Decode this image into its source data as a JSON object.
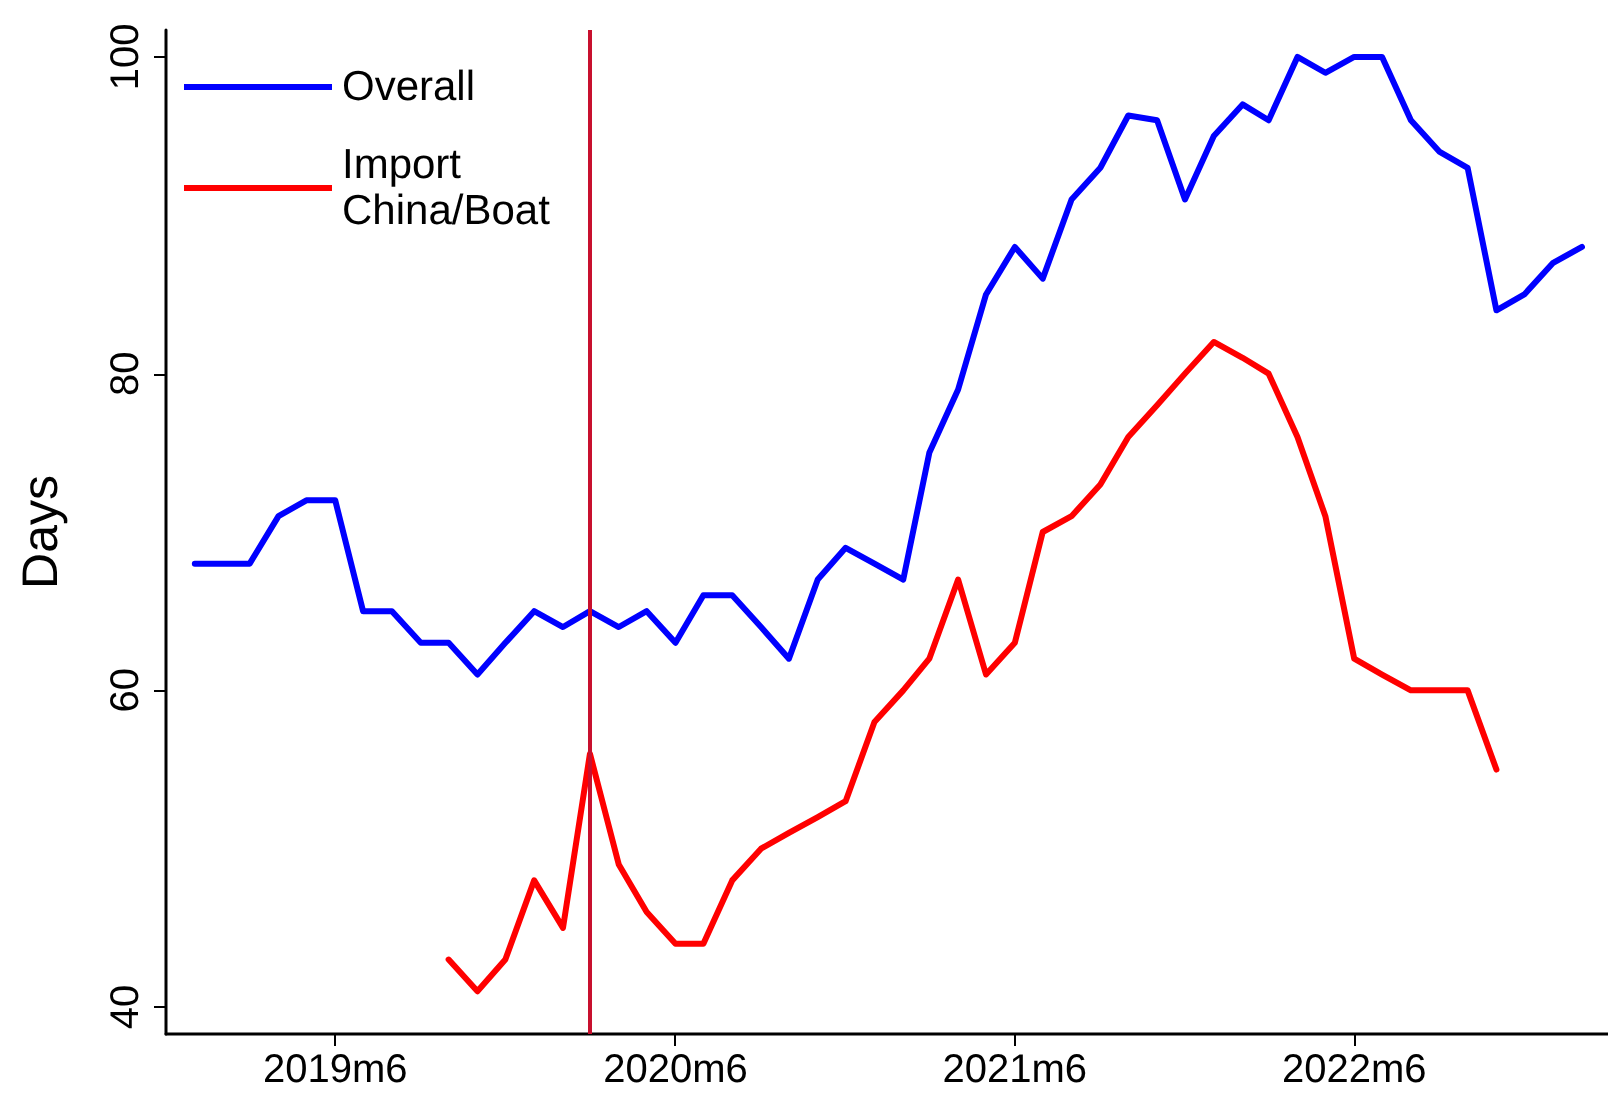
{
  "chart_data": {
    "type": "line",
    "ylabel": "Days",
    "x": [
      "2019-01",
      "2019-02",
      "2019-03",
      "2019-04",
      "2019-05",
      "2019-06",
      "2019-07",
      "2019-08",
      "2019-09",
      "2019-10",
      "2019-11",
      "2019-12",
      "2020-01",
      "2020-02",
      "2020-03",
      "2020-04",
      "2020-05",
      "2020-06",
      "2020-07",
      "2020-08",
      "2020-09",
      "2020-10",
      "2020-11",
      "2020-12",
      "2021-01",
      "2021-02",
      "2021-03",
      "2021-04",
      "2021-05",
      "2021-06",
      "2021-07",
      "2021-08",
      "2021-09",
      "2021-10",
      "2021-11",
      "2021-12",
      "2022-01",
      "2022-02",
      "2022-03",
      "2022-04",
      "2022-05",
      "2022-06",
      "2022-07",
      "2022-08",
      "2022-09",
      "2022-10",
      "2022-11",
      "2022-12",
      "2023-01",
      "2023-02"
    ],
    "series": [
      {
        "name": "Overall",
        "color": "#0000ff",
        "values": [
          68,
          68,
          68,
          71,
          72,
          72,
          65,
          65,
          63,
          63,
          61,
          63,
          65,
          64,
          65,
          64,
          65,
          63,
          66,
          66,
          64,
          62,
          67,
          69,
          68,
          67,
          75,
          79,
          85,
          88,
          86,
          91,
          93,
          96.3,
          96,
          91,
          95,
          97,
          96,
          100,
          99,
          100,
          100,
          96,
          94,
          93,
          84,
          85,
          87,
          88
        ]
      },
      {
        "name": "Import China/Boat",
        "color": "#ff0000",
        "values": [
          null,
          null,
          null,
          null,
          null,
          null,
          null,
          null,
          null,
          43,
          41,
          43,
          48,
          45,
          56,
          49,
          46,
          44,
          44,
          48,
          50,
          51,
          52,
          53,
          58,
          60,
          62,
          67,
          61,
          63,
          70,
          71,
          73,
          76,
          78,
          80,
          82,
          81,
          80,
          76,
          71,
          62,
          61,
          60,
          60,
          60,
          55,
          null,
          null,
          null
        ]
      }
    ],
    "xlim": [
      "2018-12",
      "2023-03"
    ],
    "xticks": [
      {
        "value": "2019-06",
        "label": "2019m6"
      },
      {
        "value": "2020-06",
        "label": "2020m6"
      },
      {
        "value": "2021-06",
        "label": "2021m6"
      },
      {
        "value": "2022-06",
        "label": "2022m6"
      }
    ],
    "ylim": [
      38.3,
      101.7
    ],
    "yticks": [
      40,
      60,
      80,
      100
    ],
    "ref_lines": [
      {
        "axis": "x",
        "value": "2020-03",
        "color": "#c8102e"
      }
    ],
    "legend": "top left",
    "grid": false,
    "marker": "none",
    "line_style": "solid"
  }
}
